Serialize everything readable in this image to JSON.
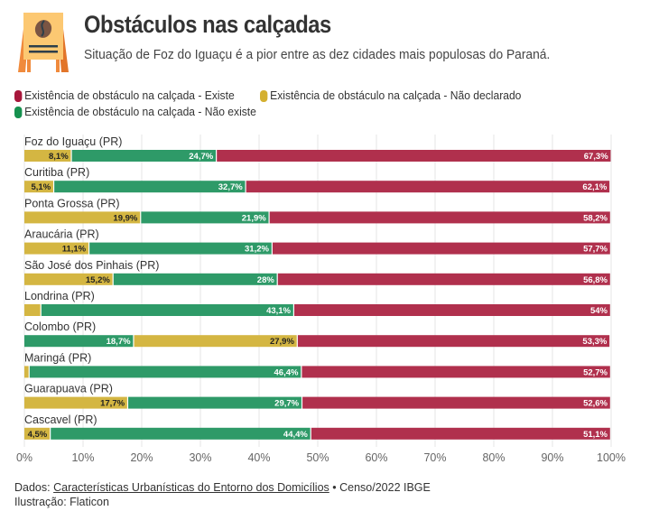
{
  "header": {
    "title": "Obstáculos nas calçadas",
    "subtitle": "Situação de Foz do Iguaçu é a pior entre as dez cidades mais populosas do Paraná.",
    "logo_icon": "sidewalk-sign-icon"
  },
  "legend": {
    "items": [
      {
        "label": "Existência de obstáculo na calçada - Existe",
        "color": "#b0304d"
      },
      {
        "label": "Existência de obstáculo na calçada - Não declarado",
        "color": "#d4b642"
      },
      {
        "label": "Existência de obstáculo na calçada - Não existe",
        "color": "#2e9a68"
      }
    ]
  },
  "footer": {
    "source_prefix": "Dados: ",
    "source_link": "Características Urbanísticas do Entorno dos Domicílios",
    "source_suffix": " • Censo/2022 IBGE",
    "illustration": "Ilustração: Flaticon"
  },
  "chart_data": {
    "type": "bar",
    "orientation": "horizontal",
    "stacked": true,
    "title": "Obstáculos nas calçadas",
    "subtitle": "Situação de Foz do Iguaçu é a pior entre as dez cidades mais populosas do Paraná.",
    "xlabel": "",
    "ylabel": "",
    "xlim": [
      0,
      100
    ],
    "x_ticks": [
      "0%",
      "10%",
      "20%",
      "30%",
      "40%",
      "50%",
      "60%",
      "70%",
      "80%",
      "90%",
      "100%"
    ],
    "grid": true,
    "legend_position": "top",
    "colors": {
      "Existe": "#b0304d",
      "Não declarado": "#d4b642",
      "Não existe": "#2e9a68"
    },
    "rows": [
      {
        "category": "Foz do Iguaçu (PR)",
        "segments": [
          {
            "series": "Não declarado",
            "value": 8.1,
            "label": "8,1%"
          },
          {
            "series": "Não existe",
            "value": 24.7,
            "label": "24,7%"
          },
          {
            "series": "Existe",
            "value": 67.3,
            "label": "67,3%"
          }
        ]
      },
      {
        "category": "Curitiba (PR)",
        "segments": [
          {
            "series": "Não declarado",
            "value": 5.1,
            "label": "5,1%"
          },
          {
            "series": "Não existe",
            "value": 32.7,
            "label": "32,7%"
          },
          {
            "series": "Existe",
            "value": 62.1,
            "label": "62,1%"
          }
        ]
      },
      {
        "category": "Ponta Grossa (PR)",
        "segments": [
          {
            "series": "Não declarado",
            "value": 19.9,
            "label": "19,9%"
          },
          {
            "series": "Não existe",
            "value": 21.9,
            "label": "21,9%"
          },
          {
            "series": "Existe",
            "value": 58.2,
            "label": "58,2%"
          }
        ]
      },
      {
        "category": "Araucária (PR)",
        "segments": [
          {
            "series": "Não declarado",
            "value": 11.1,
            "label": "11,1%"
          },
          {
            "series": "Não existe",
            "value": 31.2,
            "label": "31,2%"
          },
          {
            "series": "Existe",
            "value": 57.7,
            "label": "57,7%"
          }
        ]
      },
      {
        "category": "São José dos Pinhais (PR)",
        "segments": [
          {
            "series": "Não declarado",
            "value": 15.2,
            "label": "15,2%"
          },
          {
            "series": "Não existe",
            "value": 28,
            "label": "28%"
          },
          {
            "series": "Existe",
            "value": 56.8,
            "label": "56,8%"
          }
        ]
      },
      {
        "category": "Londrina (PR)",
        "segments": [
          {
            "series": "Não declarado",
            "value": 2.9,
            "label": ""
          },
          {
            "series": "Não existe",
            "value": 43.1,
            "label": "43,1%"
          },
          {
            "series": "Existe",
            "value": 54,
            "label": "54%"
          }
        ]
      },
      {
        "category": "Colombo (PR)",
        "segments": [
          {
            "series": "Não existe",
            "value": 18.7,
            "label": "18,7%"
          },
          {
            "series": "Não declarado",
            "value": 27.9,
            "label": "27,9%"
          },
          {
            "series": "Existe",
            "value": 53.3,
            "label": "53,3%"
          }
        ]
      },
      {
        "category": "Maringá (PR)",
        "segments": [
          {
            "series": "Não declarado",
            "value": 0.9,
            "label": ""
          },
          {
            "series": "Não existe",
            "value": 46.4,
            "label": "46,4%"
          },
          {
            "series": "Existe",
            "value": 52.7,
            "label": "52,7%"
          }
        ]
      },
      {
        "category": "Guarapuava (PR)",
        "segments": [
          {
            "series": "Não declarado",
            "value": 17.7,
            "label": "17,7%"
          },
          {
            "series": "Não existe",
            "value": 29.7,
            "label": "29,7%"
          },
          {
            "series": "Existe",
            "value": 52.6,
            "label": "52,6%"
          }
        ]
      },
      {
        "category": "Cascavel (PR)",
        "segments": [
          {
            "series": "Não declarado",
            "value": 4.5,
            "label": "4,5%"
          },
          {
            "series": "Não existe",
            "value": 44.4,
            "label": "44,4%"
          },
          {
            "series": "Existe",
            "value": 51.1,
            "label": "51,1%"
          }
        ]
      }
    ]
  }
}
